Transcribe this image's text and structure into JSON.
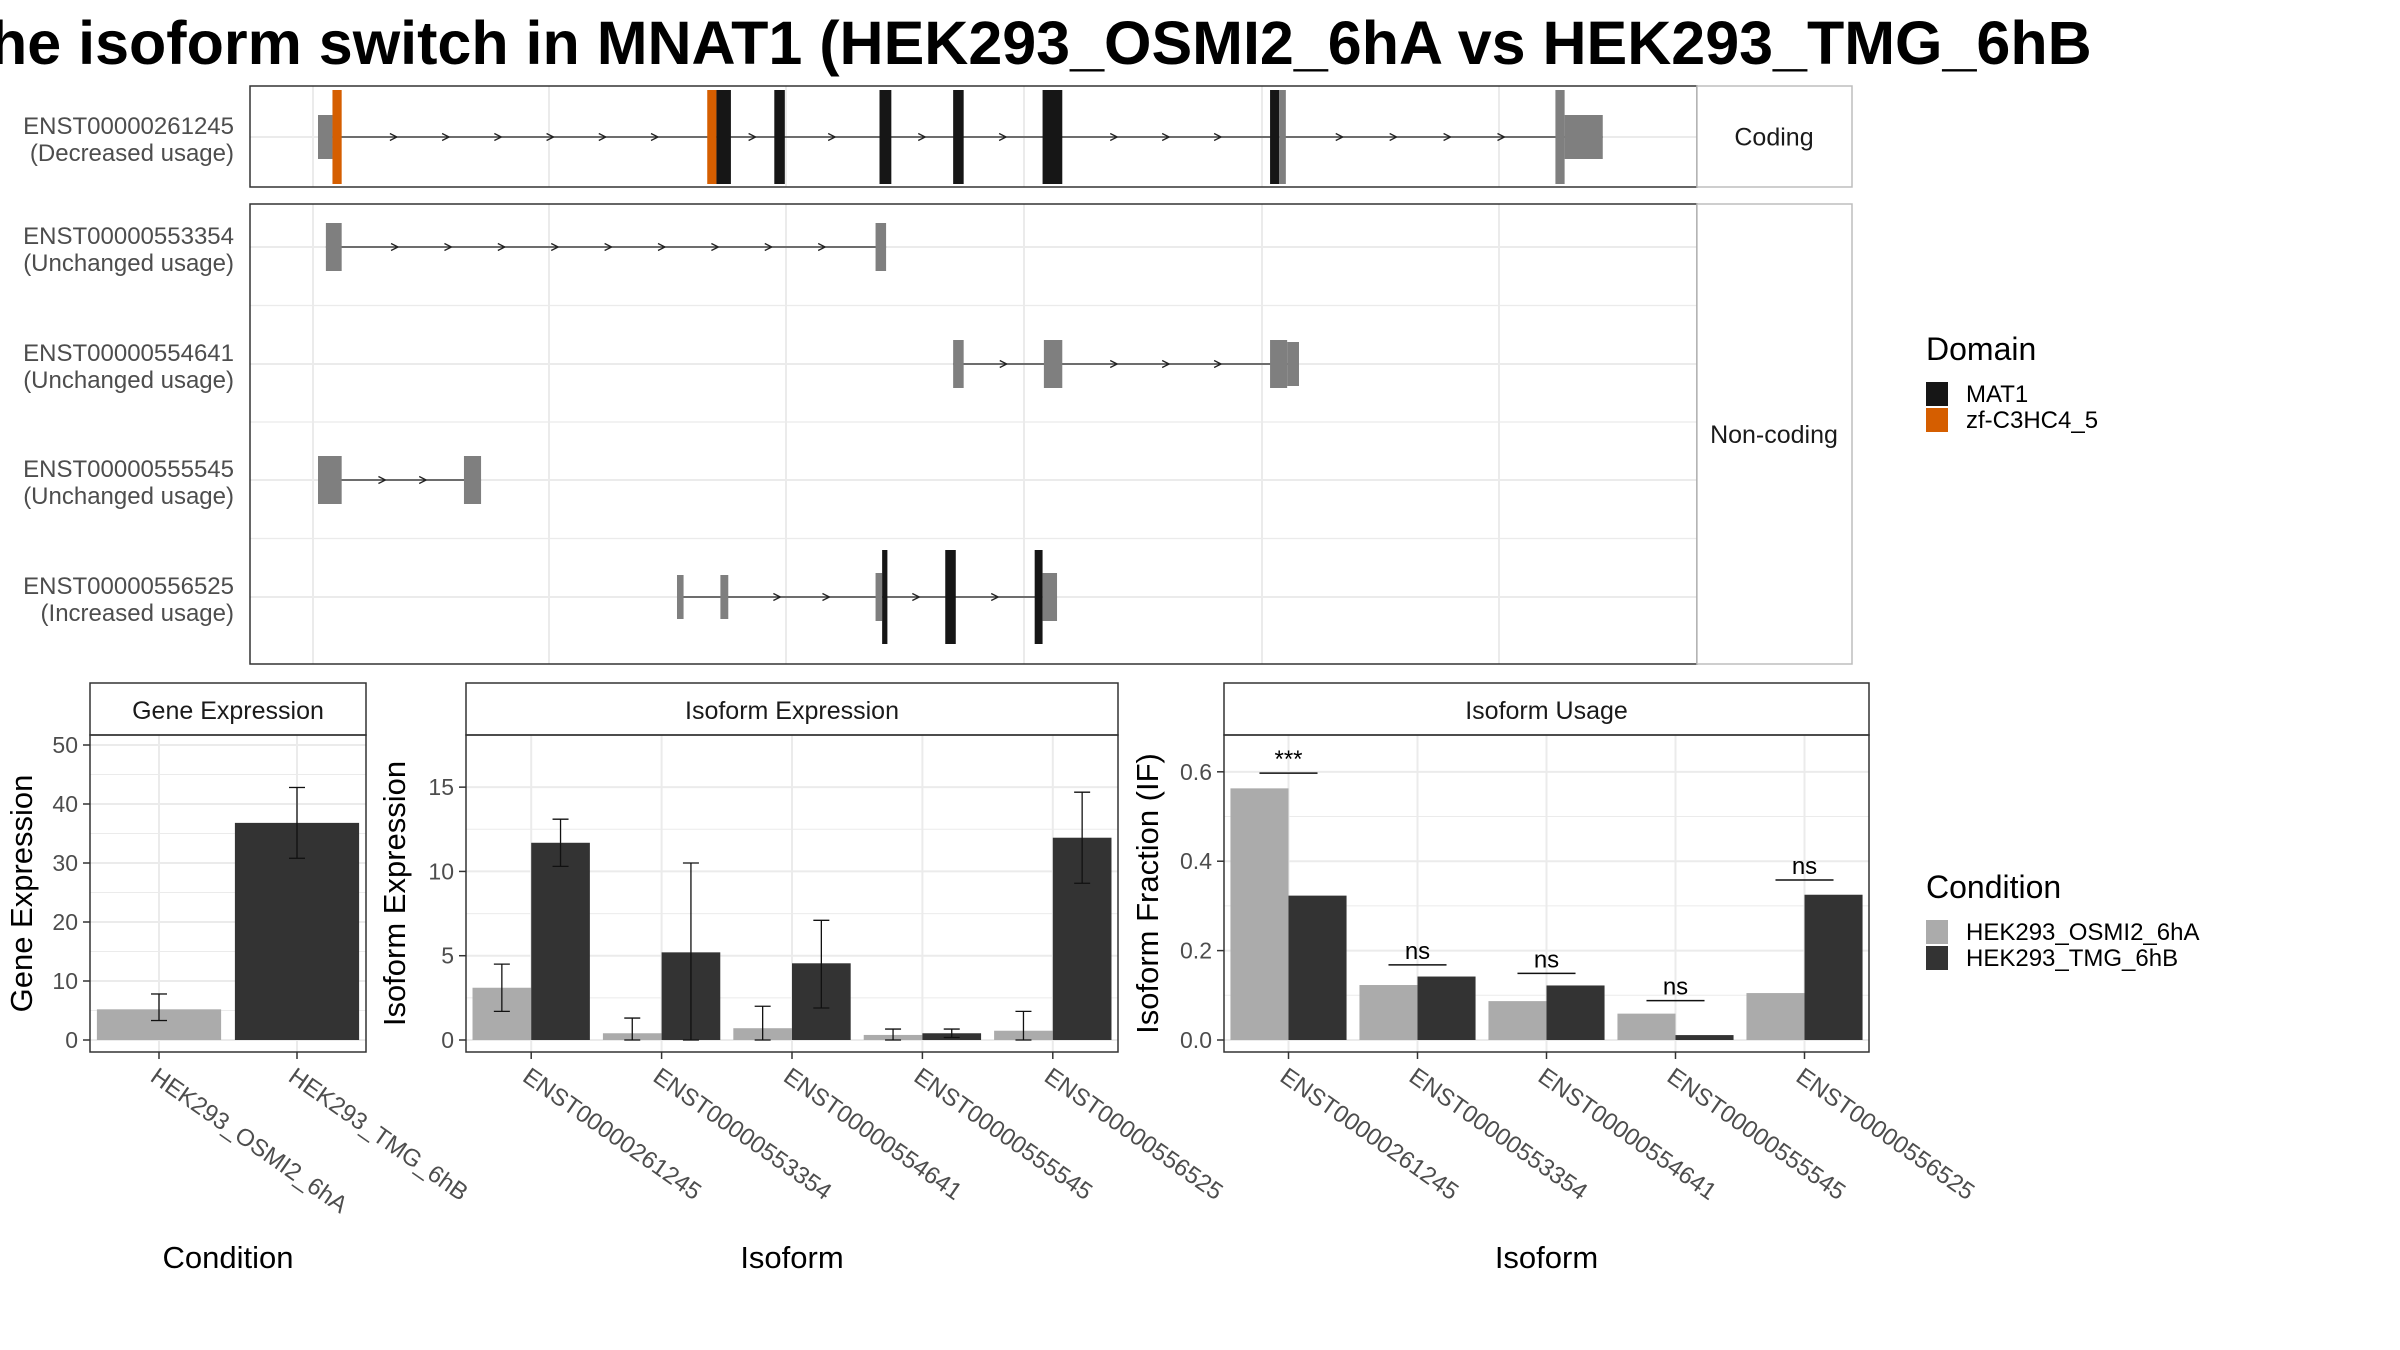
{
  "title": "he isoform switch in MNAT1 (HEK293_OSMI2_6hA vs HEK293_TMG_6hB",
  "colors": {
    "domain_MAT1": "#161616",
    "domain_zf": "#D55E00",
    "exon_plain": "#7f7f7f",
    "cond_A": "#ababab",
    "cond_B": "#333333",
    "grid": "#ebebeb",
    "strip_bg": "#ffffff"
  },
  "structure": {
    "facets": [
      "Coding",
      "Non-coding"
    ],
    "isoforms": [
      {
        "id": "ENST00000261245",
        "usage": "(Decreased usage)",
        "facet": "Coding",
        "segments": [
          {
            "s": 0.0,
            "e": 0.011,
            "type": "utr"
          },
          {
            "s": 0.011,
            "e": 0.018,
            "type": "zf"
          },
          {
            "s": 0.296,
            "e": 0.303,
            "type": "zf"
          },
          {
            "s": 0.303,
            "e": 0.314,
            "type": "MAT1"
          },
          {
            "s": 0.347,
            "e": 0.355,
            "type": "MAT1"
          },
          {
            "s": 0.427,
            "e": 0.436,
            "type": "MAT1"
          },
          {
            "s": 0.483,
            "e": 0.491,
            "type": "MAT1"
          },
          {
            "s": 0.551,
            "e": 0.566,
            "type": "MAT1"
          },
          {
            "s": 0.724,
            "e": 0.731,
            "type": "MAT1"
          },
          {
            "s": 0.731,
            "e": 0.736,
            "type": "cds"
          },
          {
            "s": 0.941,
            "e": 0.948,
            "type": "cds"
          },
          {
            "s": 0.948,
            "e": 0.977,
            "type": "utr"
          }
        ]
      },
      {
        "id": "ENST00000553354",
        "usage": "(Unchanged usage)",
        "facet": "Non-coding",
        "segments": [
          {
            "s": 0.006,
            "e": 0.018,
            "type": "nc"
          },
          {
            "s": 0.424,
            "e": 0.432,
            "type": "nc"
          }
        ]
      },
      {
        "id": "ENST00000554641",
        "usage": "(Unchanged usage)",
        "facet": "Non-coding",
        "segments": [
          {
            "s": 0.483,
            "e": 0.491,
            "type": "nc"
          },
          {
            "s": 0.552,
            "e": 0.566,
            "type": "nc"
          },
          {
            "s": 0.724,
            "e": 0.737,
            "type": "nc"
          },
          {
            "s": 0.737,
            "e": 0.746,
            "type": "nc_small"
          }
        ]
      },
      {
        "id": "ENST00000555545",
        "usage": "(Unchanged usage)",
        "facet": "Non-coding",
        "segments": [
          {
            "s": 0.0,
            "e": 0.018,
            "type": "nc"
          },
          {
            "s": 0.111,
            "e": 0.124,
            "type": "nc"
          }
        ]
      },
      {
        "id": "ENST00000556525",
        "usage": "(Increased usage)",
        "facet": "Non-coding",
        "segments": [
          {
            "s": 0.273,
            "e": 0.278,
            "type": "nc_small"
          },
          {
            "s": 0.306,
            "e": 0.312,
            "type": "nc_small"
          },
          {
            "s": 0.424,
            "e": 0.429,
            "type": "nc"
          },
          {
            "s": 0.429,
            "e": 0.433,
            "type": "MAT1"
          },
          {
            "s": 0.477,
            "e": 0.485,
            "type": "MAT1"
          },
          {
            "s": 0.545,
            "e": 0.551,
            "type": "MAT1"
          },
          {
            "s": 0.551,
            "e": 0.562,
            "type": "nc"
          }
        ]
      }
    ]
  },
  "legends": {
    "domain": {
      "title": "Domain",
      "items": [
        {
          "label": "MAT1",
          "color": "#161616"
        },
        {
          "label": "zf-C3HC4_5",
          "color": "#D55E00"
        }
      ]
    },
    "condition": {
      "title": "Condition",
      "items": [
        {
          "label": "HEK293_OSMI2_6hA",
          "color": "#ababab"
        },
        {
          "label": "HEK293_TMG_6hB",
          "color": "#333333"
        }
      ]
    }
  },
  "chart_data": [
    {
      "type": "bar",
      "title": "Gene Expression",
      "xlabel": "Condition",
      "ylabel": "Gene Expression",
      "ylim": [
        0,
        50
      ],
      "yticks": [
        0,
        10,
        20,
        30,
        40,
        50
      ],
      "categories": [
        "HEK293_OSMI2_6hA",
        "HEK293_TMG_6hB"
      ],
      "values": [
        5.2,
        36.8
      ],
      "err_low": [
        3.3,
        30.8
      ],
      "err_high": [
        7.8,
        42.8
      ]
    },
    {
      "type": "bar",
      "title": "Isoform Expression",
      "xlabel": "Isoform",
      "ylabel": "Isoform Expression",
      "ylim": [
        0,
        17.5
      ],
      "yticks": [
        0,
        5,
        10,
        15
      ],
      "categories": [
        "ENST00000261245",
        "ENST00000553354",
        "ENST00000554641",
        "ENST00000555545",
        "ENST00000556525"
      ],
      "series": [
        {
          "name": "HEK293_OSMI2_6hA",
          "values": [
            3.1,
            0.4,
            0.7,
            0.3,
            0.55
          ],
          "err_low": [
            1.7,
            0.0,
            0.0,
            0.0,
            0.0
          ],
          "err_high": [
            4.5,
            1.3,
            2.0,
            0.65,
            1.7
          ]
        },
        {
          "name": "HEK293_TMG_6hB",
          "values": [
            11.7,
            5.2,
            4.55,
            0.4,
            12.0
          ],
          "err_low": [
            10.3,
            0.0,
            1.9,
            0.15,
            9.3
          ],
          "err_high": [
            13.1,
            10.5,
            7.1,
            0.65,
            14.7
          ]
        }
      ]
    },
    {
      "type": "bar",
      "title": "Isoform Usage",
      "xlabel": "Isoform",
      "ylabel": "Isoform Fraction (IF)",
      "ylim": [
        0,
        0.66
      ],
      "yticks": [
        0.0,
        0.2,
        0.4,
        0.6
      ],
      "ytick_labels": [
        "0.0",
        "0.2",
        "0.4",
        "0.6"
      ],
      "categories": [
        "ENST00000261245",
        "ENST00000553354",
        "ENST00000554641",
        "ENST00000555545",
        "ENST00000556525"
      ],
      "series": [
        {
          "name": "HEK293_OSMI2_6hA",
          "values": [
            0.563,
            0.123,
            0.087,
            0.059,
            0.105
          ]
        },
        {
          "name": "HEK293_TMG_6hB",
          "values": [
            0.323,
            0.142,
            0.122,
            0.011,
            0.325
          ]
        }
      ],
      "significance": [
        "***",
        "ns",
        "ns",
        "ns",
        "ns"
      ],
      "sig_y": [
        0.597,
        0.168,
        0.149,
        0.088,
        0.358
      ]
    }
  ]
}
